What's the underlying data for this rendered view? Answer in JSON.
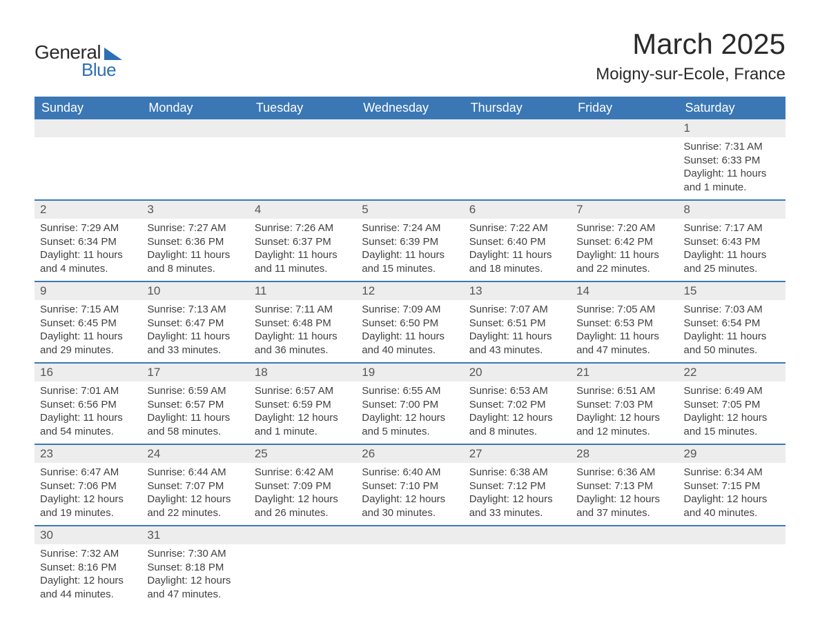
{
  "logo": {
    "word1": "General",
    "word2": "Blue"
  },
  "header": {
    "month_title": "March 2025",
    "location": "Moigny-sur-Ecole, France"
  },
  "colors": {
    "header_bg": "#3b77b5",
    "header_text": "#ffffff",
    "daynum_bg": "#ededed",
    "row_border": "#3b77b5",
    "body_text": "#404040",
    "logo_accent": "#2d6fb5"
  },
  "day_headers": [
    "Sunday",
    "Monday",
    "Tuesday",
    "Wednesday",
    "Thursday",
    "Friday",
    "Saturday"
  ],
  "weeks": [
    [
      {
        "num": "",
        "lines": []
      },
      {
        "num": "",
        "lines": []
      },
      {
        "num": "",
        "lines": []
      },
      {
        "num": "",
        "lines": []
      },
      {
        "num": "",
        "lines": []
      },
      {
        "num": "",
        "lines": []
      },
      {
        "num": "1",
        "lines": [
          "Sunrise: 7:31 AM",
          "Sunset: 6:33 PM",
          "Daylight: 11 hours and 1 minute."
        ]
      }
    ],
    [
      {
        "num": "2",
        "lines": [
          "Sunrise: 7:29 AM",
          "Sunset: 6:34 PM",
          "Daylight: 11 hours and 4 minutes."
        ]
      },
      {
        "num": "3",
        "lines": [
          "Sunrise: 7:27 AM",
          "Sunset: 6:36 PM",
          "Daylight: 11 hours and 8 minutes."
        ]
      },
      {
        "num": "4",
        "lines": [
          "Sunrise: 7:26 AM",
          "Sunset: 6:37 PM",
          "Daylight: 11 hours and 11 minutes."
        ]
      },
      {
        "num": "5",
        "lines": [
          "Sunrise: 7:24 AM",
          "Sunset: 6:39 PM",
          "Daylight: 11 hours and 15 minutes."
        ]
      },
      {
        "num": "6",
        "lines": [
          "Sunrise: 7:22 AM",
          "Sunset: 6:40 PM",
          "Daylight: 11 hours and 18 minutes."
        ]
      },
      {
        "num": "7",
        "lines": [
          "Sunrise: 7:20 AM",
          "Sunset: 6:42 PM",
          "Daylight: 11 hours and 22 minutes."
        ]
      },
      {
        "num": "8",
        "lines": [
          "Sunrise: 7:17 AM",
          "Sunset: 6:43 PM",
          "Daylight: 11 hours and 25 minutes."
        ]
      }
    ],
    [
      {
        "num": "9",
        "lines": [
          "Sunrise: 7:15 AM",
          "Sunset: 6:45 PM",
          "Daylight: 11 hours and 29 minutes."
        ]
      },
      {
        "num": "10",
        "lines": [
          "Sunrise: 7:13 AM",
          "Sunset: 6:47 PM",
          "Daylight: 11 hours and 33 minutes."
        ]
      },
      {
        "num": "11",
        "lines": [
          "Sunrise: 7:11 AM",
          "Sunset: 6:48 PM",
          "Daylight: 11 hours and 36 minutes."
        ]
      },
      {
        "num": "12",
        "lines": [
          "Sunrise: 7:09 AM",
          "Sunset: 6:50 PM",
          "Daylight: 11 hours and 40 minutes."
        ]
      },
      {
        "num": "13",
        "lines": [
          "Sunrise: 7:07 AM",
          "Sunset: 6:51 PM",
          "Daylight: 11 hours and 43 minutes."
        ]
      },
      {
        "num": "14",
        "lines": [
          "Sunrise: 7:05 AM",
          "Sunset: 6:53 PM",
          "Daylight: 11 hours and 47 minutes."
        ]
      },
      {
        "num": "15",
        "lines": [
          "Sunrise: 7:03 AM",
          "Sunset: 6:54 PM",
          "Daylight: 11 hours and 50 minutes."
        ]
      }
    ],
    [
      {
        "num": "16",
        "lines": [
          "Sunrise: 7:01 AM",
          "Sunset: 6:56 PM",
          "Daylight: 11 hours and 54 minutes."
        ]
      },
      {
        "num": "17",
        "lines": [
          "Sunrise: 6:59 AM",
          "Sunset: 6:57 PM",
          "Daylight: 11 hours and 58 minutes."
        ]
      },
      {
        "num": "18",
        "lines": [
          "Sunrise: 6:57 AM",
          "Sunset: 6:59 PM",
          "Daylight: 12 hours and 1 minute."
        ]
      },
      {
        "num": "19",
        "lines": [
          "Sunrise: 6:55 AM",
          "Sunset: 7:00 PM",
          "Daylight: 12 hours and 5 minutes."
        ]
      },
      {
        "num": "20",
        "lines": [
          "Sunrise: 6:53 AM",
          "Sunset: 7:02 PM",
          "Daylight: 12 hours and 8 minutes."
        ]
      },
      {
        "num": "21",
        "lines": [
          "Sunrise: 6:51 AM",
          "Sunset: 7:03 PM",
          "Daylight: 12 hours and 12 minutes."
        ]
      },
      {
        "num": "22",
        "lines": [
          "Sunrise: 6:49 AM",
          "Sunset: 7:05 PM",
          "Daylight: 12 hours and 15 minutes."
        ]
      }
    ],
    [
      {
        "num": "23",
        "lines": [
          "Sunrise: 6:47 AM",
          "Sunset: 7:06 PM",
          "Daylight: 12 hours and 19 minutes."
        ]
      },
      {
        "num": "24",
        "lines": [
          "Sunrise: 6:44 AM",
          "Sunset: 7:07 PM",
          "Daylight: 12 hours and 22 minutes."
        ]
      },
      {
        "num": "25",
        "lines": [
          "Sunrise: 6:42 AM",
          "Sunset: 7:09 PM",
          "Daylight: 12 hours and 26 minutes."
        ]
      },
      {
        "num": "26",
        "lines": [
          "Sunrise: 6:40 AM",
          "Sunset: 7:10 PM",
          "Daylight: 12 hours and 30 minutes."
        ]
      },
      {
        "num": "27",
        "lines": [
          "Sunrise: 6:38 AM",
          "Sunset: 7:12 PM",
          "Daylight: 12 hours and 33 minutes."
        ]
      },
      {
        "num": "28",
        "lines": [
          "Sunrise: 6:36 AM",
          "Sunset: 7:13 PM",
          "Daylight: 12 hours and 37 minutes."
        ]
      },
      {
        "num": "29",
        "lines": [
          "Sunrise: 6:34 AM",
          "Sunset: 7:15 PM",
          "Daylight: 12 hours and 40 minutes."
        ]
      }
    ],
    [
      {
        "num": "30",
        "lines": [
          "Sunrise: 7:32 AM",
          "Sunset: 8:16 PM",
          "Daylight: 12 hours and 44 minutes."
        ]
      },
      {
        "num": "31",
        "lines": [
          "Sunrise: 7:30 AM",
          "Sunset: 8:18 PM",
          "Daylight: 12 hours and 47 minutes."
        ]
      },
      {
        "num": "",
        "lines": []
      },
      {
        "num": "",
        "lines": []
      },
      {
        "num": "",
        "lines": []
      },
      {
        "num": "",
        "lines": []
      },
      {
        "num": "",
        "lines": []
      }
    ]
  ]
}
